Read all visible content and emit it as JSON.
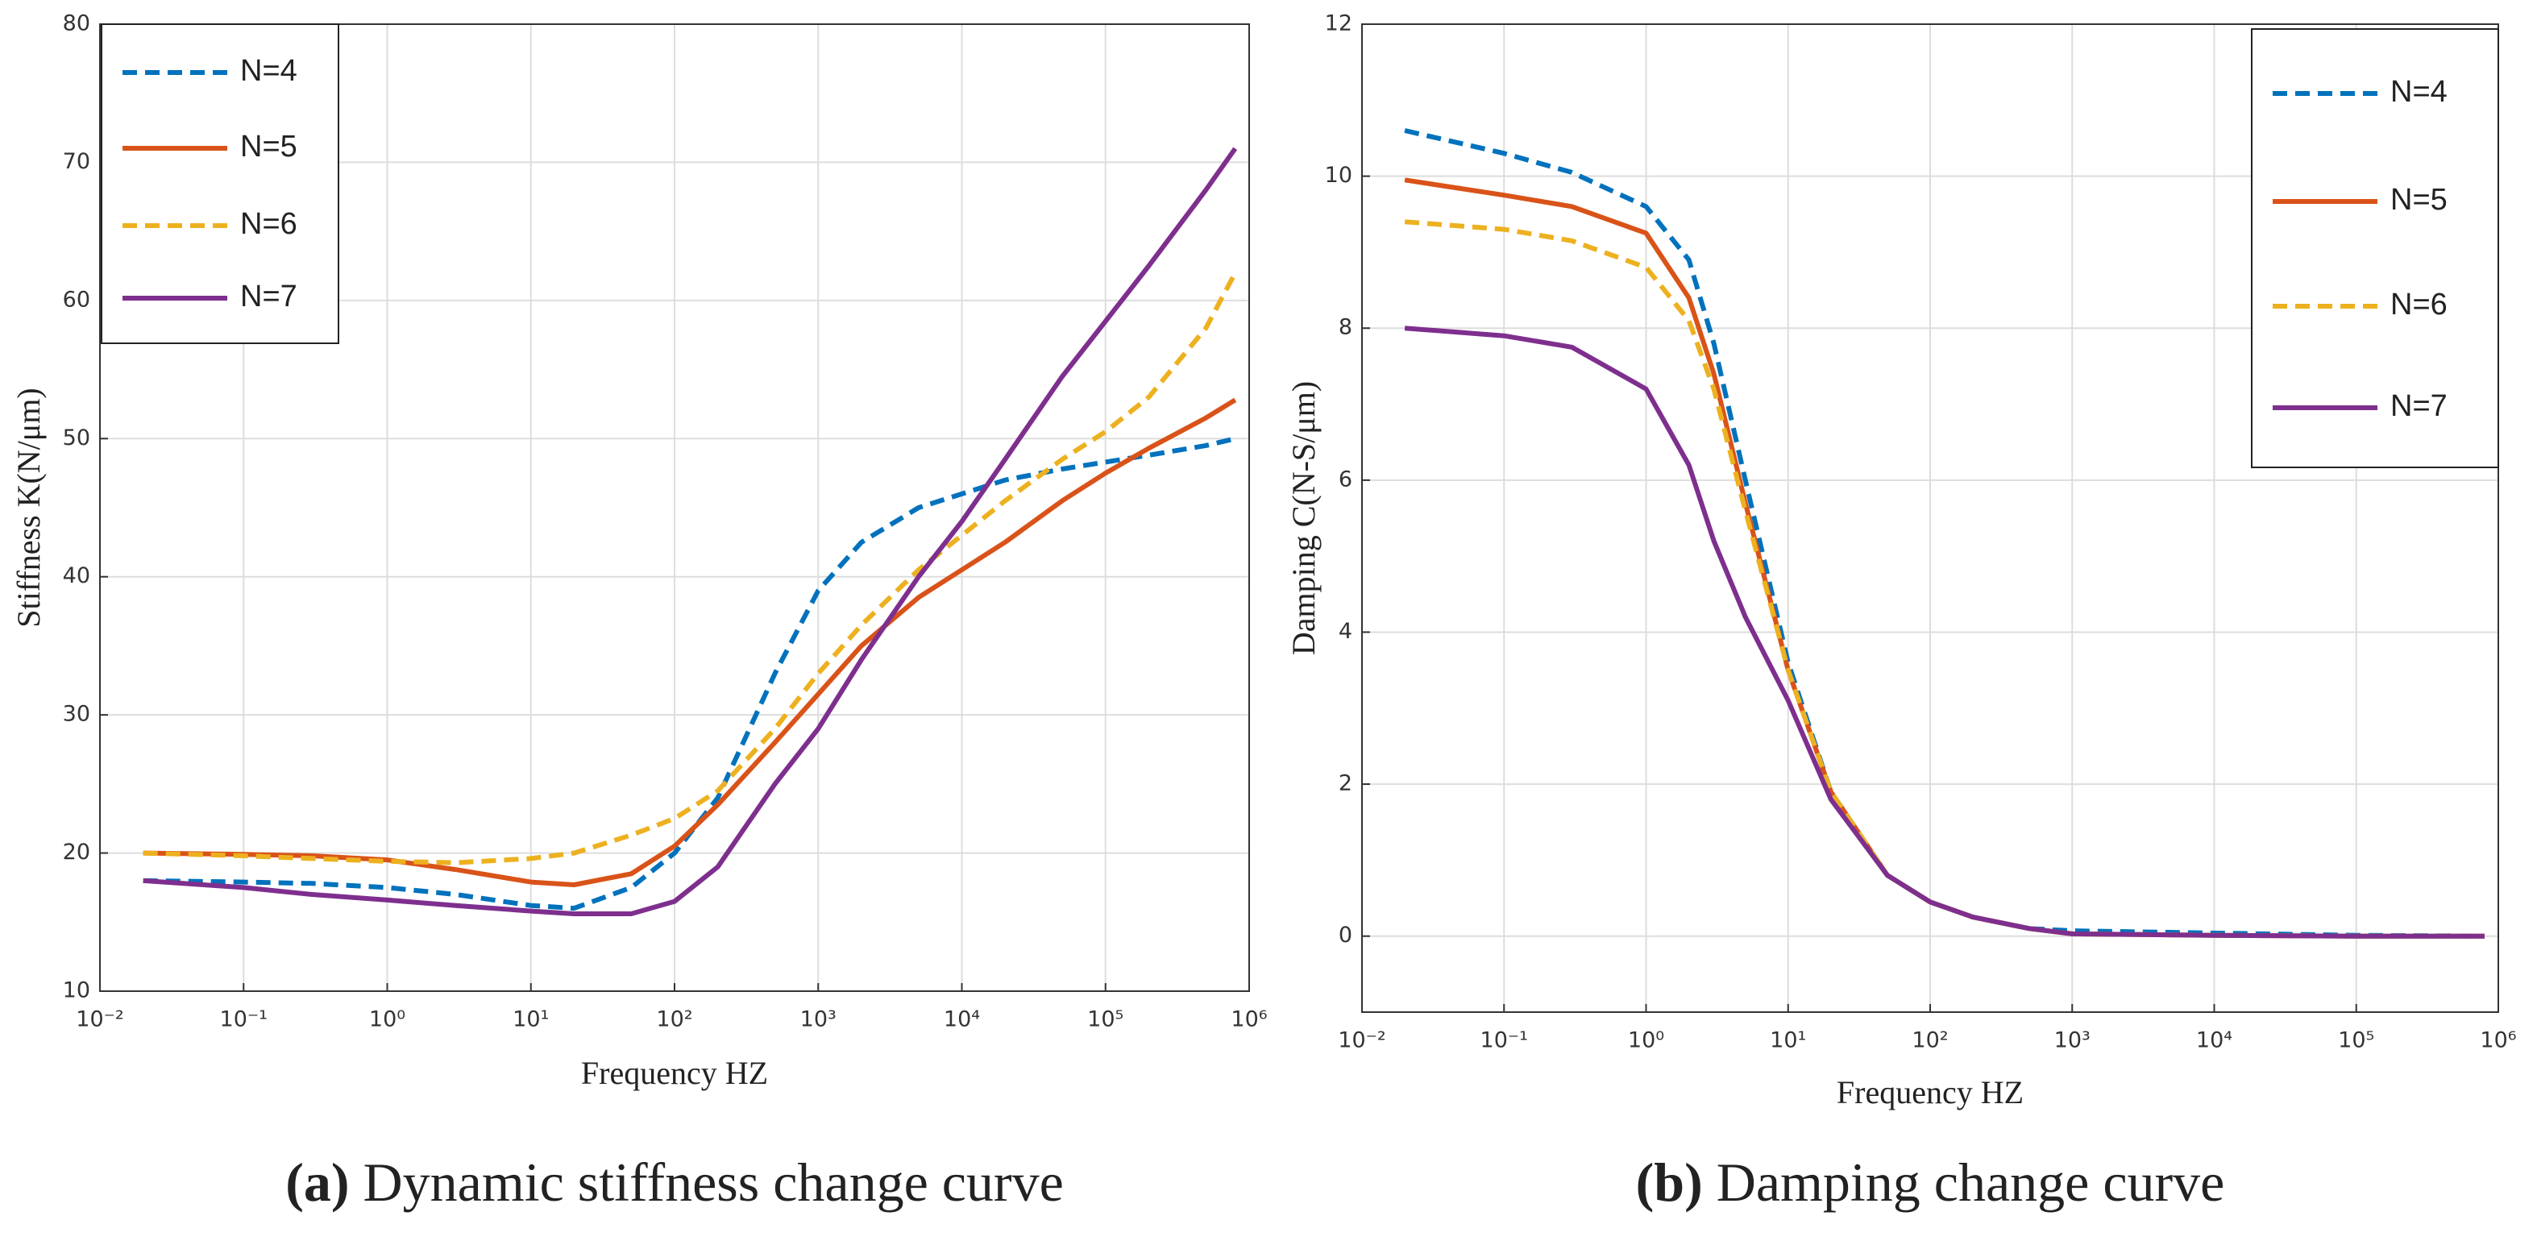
{
  "chart_data": [
    {
      "type": "line",
      "caption_label": "(a)",
      "caption": "Dynamic stiffness change curve",
      "xlabel": "Frequency HZ",
      "ylabel": "Stiffness K(N/μm)",
      "xscale": "log",
      "grid": true,
      "legend": "upper left",
      "xlim": [
        0.01,
        1000000
      ],
      "xticks": [
        {
          "value": 0.01,
          "label": "10⁻²"
        },
        {
          "value": 0.1,
          "label": "10⁻¹"
        },
        {
          "value": 1,
          "label": "10⁰"
        },
        {
          "value": 10,
          "label": "10¹"
        },
        {
          "value": 100,
          "label": "10²"
        },
        {
          "value": 1000,
          "label": "10³"
        },
        {
          "value": 10000,
          "label": "10⁴"
        },
        {
          "value": 100000,
          "label": "10⁵"
        },
        {
          "value": 1000000,
          "label": "10⁶"
        }
      ],
      "ylim": [
        10,
        80
      ],
      "yticks": [
        10,
        20,
        30,
        40,
        50,
        60,
        70,
        80
      ],
      "x": [
        0.02,
        0.1,
        0.3,
        1,
        3,
        10,
        20,
        50,
        100,
        200,
        500,
        1000,
        2000,
        5000,
        10000,
        20000,
        50000,
        100000,
        200000,
        500000,
        800000
      ],
      "series": [
        {
          "name": "N=4",
          "color": "#0072BD",
          "line_style": "dashed",
          "values": [
            18,
            17.9,
            17.8,
            17.5,
            17,
            16.2,
            16,
            17.5,
            20,
            24,
            33,
            39,
            42.5,
            45,
            46,
            47,
            47.8,
            48.3,
            48.8,
            49.5,
            50
          ]
        },
        {
          "name": "N=5",
          "color": "#D95319",
          "line_style": "solid",
          "values": [
            20,
            19.9,
            19.8,
            19.5,
            18.8,
            17.9,
            17.7,
            18.5,
            20.5,
            23.5,
            28,
            31.5,
            35,
            38.5,
            40.5,
            42.5,
            45.5,
            47.5,
            49.3,
            51.5,
            52.8
          ]
        },
        {
          "name": "N=6",
          "color": "#EDB120",
          "line_style": "dashed",
          "values": [
            20,
            19.8,
            19.6,
            19.4,
            19.3,
            19.6,
            20,
            21.3,
            22.5,
            24.5,
            29,
            33,
            36.5,
            40.5,
            43,
            45.5,
            48.5,
            50.5,
            53,
            58,
            62
          ]
        },
        {
          "name": "N=7",
          "color": "#7E2F8E",
          "line_style": "solid",
          "values": [
            18,
            17.5,
            17,
            16.6,
            16.2,
            15.8,
            15.6,
            15.6,
            16.5,
            19,
            25,
            29,
            34,
            40,
            44,
            48.5,
            54.5,
            58.5,
            62.5,
            68,
            71
          ]
        }
      ]
    },
    {
      "type": "line",
      "caption_label": "(b)",
      "caption": "Damping change curve",
      "xlabel": "Frequency HZ",
      "ylabel": "Damping C(N-S/μm)",
      "xscale": "log",
      "grid": true,
      "legend": "upper right",
      "xlim": [
        0.01,
        1000000
      ],
      "xticks": [
        {
          "value": 0.01,
          "label": "10⁻²"
        },
        {
          "value": 0.1,
          "label": "10⁻¹"
        },
        {
          "value": 1,
          "label": "10⁰"
        },
        {
          "value": 10,
          "label": "10¹"
        },
        {
          "value": 100,
          "label": "10²"
        },
        {
          "value": 1000,
          "label": "10³"
        },
        {
          "value": 10000,
          "label": "10⁴"
        },
        {
          "value": 100000,
          "label": "10⁵"
        },
        {
          "value": 1000000,
          "label": "10⁶"
        }
      ],
      "ylim": [
        -1,
        12
      ],
      "yticks": [
        0,
        2,
        4,
        6,
        8,
        10,
        12
      ],
      "x": [
        0.02,
        0.1,
        0.3,
        1,
        2,
        3,
        5,
        10,
        20,
        50,
        100,
        200,
        500,
        1000,
        10000,
        100000,
        800000
      ],
      "series": [
        {
          "name": "N=4",
          "color": "#0072BD",
          "line_style": "dashed",
          "values": [
            10.6,
            10.3,
            10.05,
            9.6,
            8.9,
            7.8,
            6.0,
            3.6,
            1.9,
            0.8,
            0.45,
            0.25,
            0.1,
            0.07,
            0.04,
            0.01,
            0
          ]
        },
        {
          "name": "N=5",
          "color": "#D95319",
          "line_style": "solid",
          "values": [
            9.95,
            9.75,
            9.6,
            9.25,
            8.4,
            7.4,
            5.7,
            3.5,
            1.9,
            0.8,
            0.45,
            0.25,
            0.1,
            0.03,
            0.01,
            0,
            0
          ]
        },
        {
          "name": "N=6",
          "color": "#EDB120",
          "line_style": "dashed",
          "values": [
            9.4,
            9.3,
            9.15,
            8.8,
            8.1,
            7.2,
            5.6,
            3.5,
            1.9,
            0.8,
            0.45,
            0.25,
            0.1,
            0.03,
            0.01,
            0,
            0
          ]
        },
        {
          "name": "N=7",
          "color": "#7E2F8E",
          "line_style": "solid",
          "values": [
            8.0,
            7.9,
            7.75,
            7.2,
            6.2,
            5.2,
            4.2,
            3.1,
            1.8,
            0.8,
            0.45,
            0.25,
            0.1,
            0.03,
            0.01,
            0,
            0
          ]
        }
      ]
    }
  ]
}
